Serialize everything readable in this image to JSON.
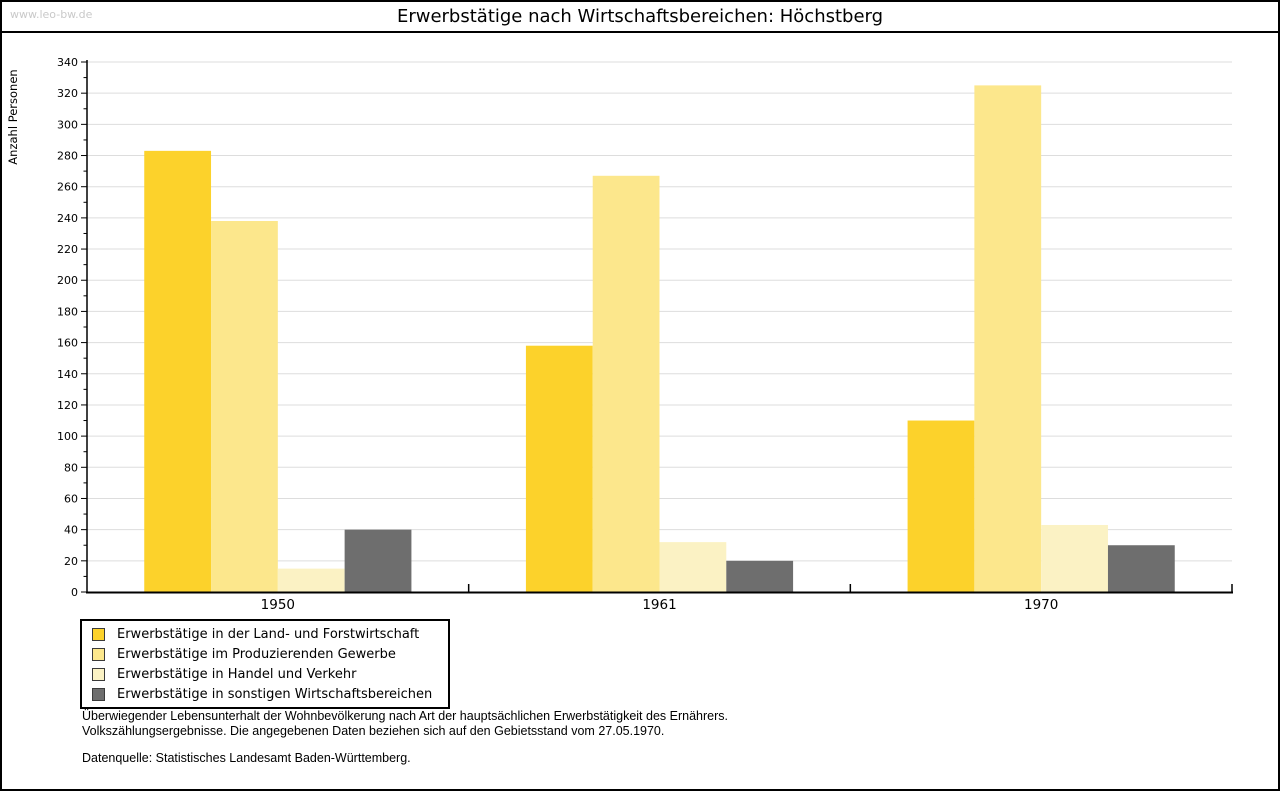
{
  "watermark": "www.leo-bw.de",
  "title": "Erwerbstätige nach Wirtschaftsbereichen: Höchstberg",
  "chart_data": {
    "type": "bar",
    "title": "Erwerbstätige nach Wirtschaftsbereichen: Höchstberg",
    "xlabel": "",
    "ylabel": "Anzahl Personen",
    "categories": [
      "1950",
      "1961",
      "1970"
    ],
    "series": [
      {
        "name": "Erwerbstätige in der Land- und Forstwirtschaft",
        "color": "#FCD22B",
        "values": [
          283,
          158,
          110
        ]
      },
      {
        "name": "Erwerbstätige im Produzierenden Gewerbe",
        "color": "#FCE78C",
        "values": [
          238,
          267,
          325
        ]
      },
      {
        "name": "Erwerbstätige in Handel und Verkehr",
        "color": "#FBF2C4",
        "values": [
          15,
          32,
          43
        ]
      },
      {
        "name": "Erwerbstätige in sonstigen Wirtschaftsbereichen",
        "color": "#6E6E6E",
        "values": [
          40,
          20,
          30
        ]
      }
    ],
    "ylim": [
      0,
      340
    ],
    "ytick_step": 20,
    "ytick_minor_step": 10,
    "grid": true,
    "legend_position": "bottom-left",
    "colors": {
      "gridline": "#DDDDDD",
      "axis": "#000000",
      "tick_label": "#000000"
    }
  },
  "footnotes": {
    "line1": "Überwiegender Lebensunterhalt der Wohnbevölkerung nach Art der hauptsächlichen Erwerbstätigkeit des Ernährers.",
    "line2": "Volkszählungsergebnisse. Die angegebenen Daten beziehen sich auf den Gebietsstand vom 27.05.1970.",
    "source": "Datenquelle: Statistisches Landesamt Baden-Württemberg."
  }
}
